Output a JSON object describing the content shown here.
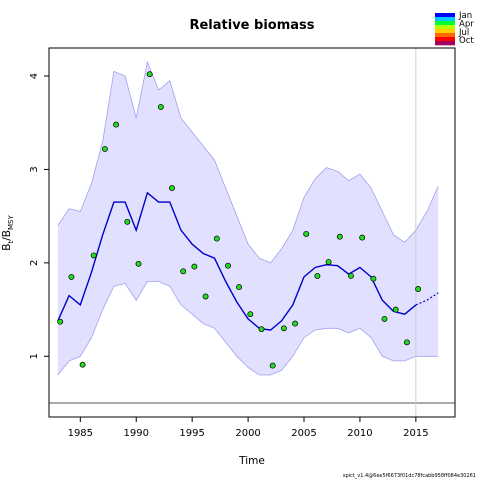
{
  "title": "Relative biomass",
  "xlabel": "Time",
  "ylabel_main": "B",
  "ylabel_sub1": "t",
  "ylabel_mid": "/B",
  "ylabel_sub2": "MSY",
  "footer": "spict_v1.4@6ee5f6673f01dc78fcabb958ff084e30261",
  "legend": {
    "labels": [
      "Jan",
      "Apr",
      "Jul",
      "Oct"
    ],
    "colors": [
      "#0000ff",
      "#00c8ff",
      "#00ff33",
      "#b4ff00",
      "#ffd000",
      "#ff6600",
      "#ff0000",
      "#a00060"
    ]
  },
  "chart_data": {
    "type": "line",
    "title": "Relative biomass",
    "xlabel": "Time",
    "ylabel": "Bt/BMSY",
    "xlim": [
      1982.2,
      2018.5
    ],
    "ylim": [
      0.35,
      4.3
    ],
    "xticks": [
      1985,
      1990,
      1995,
      2000,
      2005,
      2010,
      2015
    ],
    "yticks": [
      1,
      2,
      3,
      4
    ],
    "colors": {
      "band": "#e1e1ff",
      "band_edge": "#a0a0f0",
      "estimate": "#0000cc",
      "points": "#22dd22",
      "ref_line": "#555555",
      "vline": "#cccccc"
    },
    "hline": 0.5,
    "vline": 2015.0,
    "band_x": [
      1983.0,
      1984.0,
      1985.0,
      1986.0,
      1987.0,
      1988.0,
      1989.0,
      1990.0,
      1991.0,
      1992.0,
      1993.0,
      1994.0,
      1995.0,
      1996.0,
      1997.0,
      1998.0,
      1999.0,
      2000.0,
      2001.0,
      2002.0,
      2003.0,
      2004.0,
      2005.0,
      2006.0,
      2007.0,
      2008.0,
      2009.0,
      2010.0,
      2011.0,
      2012.0,
      2013.0,
      2014.0,
      2015.0,
      2016.0,
      2017.0
    ],
    "band_upper": [
      2.4,
      2.58,
      2.55,
      2.85,
      3.3,
      4.05,
      4.0,
      3.55,
      4.15,
      3.85,
      3.95,
      3.55,
      3.4,
      3.25,
      3.1,
      2.8,
      2.5,
      2.2,
      2.05,
      2.0,
      2.15,
      2.35,
      2.7,
      2.9,
      3.02,
      2.98,
      2.88,
      2.95,
      2.8,
      2.55,
      2.3,
      2.22,
      2.35,
      2.55,
      2.82
    ],
    "band_lower": [
      0.8,
      0.95,
      1.0,
      1.2,
      1.5,
      1.75,
      1.78,
      1.6,
      1.8,
      1.8,
      1.75,
      1.55,
      1.45,
      1.35,
      1.3,
      1.15,
      1.0,
      0.88,
      0.8,
      0.8,
      0.85,
      1.0,
      1.2,
      1.28,
      1.3,
      1.3,
      1.25,
      1.3,
      1.2,
      1.0,
      0.95,
      0.95,
      1.0,
      1.0,
      1.0
    ],
    "estimate_x": [
      1983.0,
      1984.0,
      1985.0,
      1986.0,
      1987.0,
      1988.0,
      1989.0,
      1990.0,
      1991.0,
      1992.0,
      1993.0,
      1994.0,
      1995.0,
      1996.0,
      1997.0,
      1998.0,
      1999.0,
      2000.0,
      2001.0,
      2002.0,
      2003.0,
      2004.0,
      2005.0,
      2006.0,
      2007.0,
      2008.0,
      2009.0,
      2010.0,
      2011.0,
      2012.0,
      2013.0,
      2014.0,
      2015.0
    ],
    "estimate_y": [
      1.38,
      1.65,
      1.55,
      1.9,
      2.3,
      2.65,
      2.65,
      2.35,
      2.75,
      2.65,
      2.65,
      2.35,
      2.2,
      2.1,
      2.05,
      1.8,
      1.58,
      1.4,
      1.3,
      1.28,
      1.38,
      1.55,
      1.85,
      1.95,
      1.98,
      1.97,
      1.88,
      1.95,
      1.85,
      1.6,
      1.48,
      1.45,
      1.55
    ],
    "forecast_x": [
      2015.0,
      2016.0,
      2017.0
    ],
    "forecast_y": [
      1.55,
      1.6,
      1.68
    ],
    "observations": [
      {
        "x": 1983.2,
        "y": 1.37
      },
      {
        "x": 1984.2,
        "y": 1.85
      },
      {
        "x": 1985.2,
        "y": 0.91
      },
      {
        "x": 1986.2,
        "y": 2.08
      },
      {
        "x": 1987.2,
        "y": 3.22
      },
      {
        "x": 1988.2,
        "y": 3.48
      },
      {
        "x": 1989.2,
        "y": 2.44
      },
      {
        "x": 1990.2,
        "y": 1.99
      },
      {
        "x": 1991.2,
        "y": 4.02
      },
      {
        "x": 1992.2,
        "y": 3.67
      },
      {
        "x": 1993.2,
        "y": 2.8
      },
      {
        "x": 1994.2,
        "y": 1.91
      },
      {
        "x": 1995.2,
        "y": 1.96
      },
      {
        "x": 1996.2,
        "y": 1.64
      },
      {
        "x": 1997.2,
        "y": 2.26
      },
      {
        "x": 1998.2,
        "y": 1.97
      },
      {
        "x": 1999.2,
        "y": 1.74
      },
      {
        "x": 2000.2,
        "y": 1.45
      },
      {
        "x": 2001.2,
        "y": 1.29
      },
      {
        "x": 2002.2,
        "y": 0.9
      },
      {
        "x": 2003.2,
        "y": 1.3
      },
      {
        "x": 2004.2,
        "y": 1.35
      },
      {
        "x": 2005.2,
        "y": 2.31
      },
      {
        "x": 2006.2,
        "y": 1.86
      },
      {
        "x": 2007.2,
        "y": 2.01
      },
      {
        "x": 2008.2,
        "y": 2.28
      },
      {
        "x": 2009.2,
        "y": 1.86
      },
      {
        "x": 2010.2,
        "y": 2.27
      },
      {
        "x": 2011.2,
        "y": 1.83
      },
      {
        "x": 2012.2,
        "y": 1.4
      },
      {
        "x": 2013.2,
        "y": 1.5
      },
      {
        "x": 2014.2,
        "y": 1.15
      },
      {
        "x": 2015.2,
        "y": 1.72
      }
    ]
  }
}
